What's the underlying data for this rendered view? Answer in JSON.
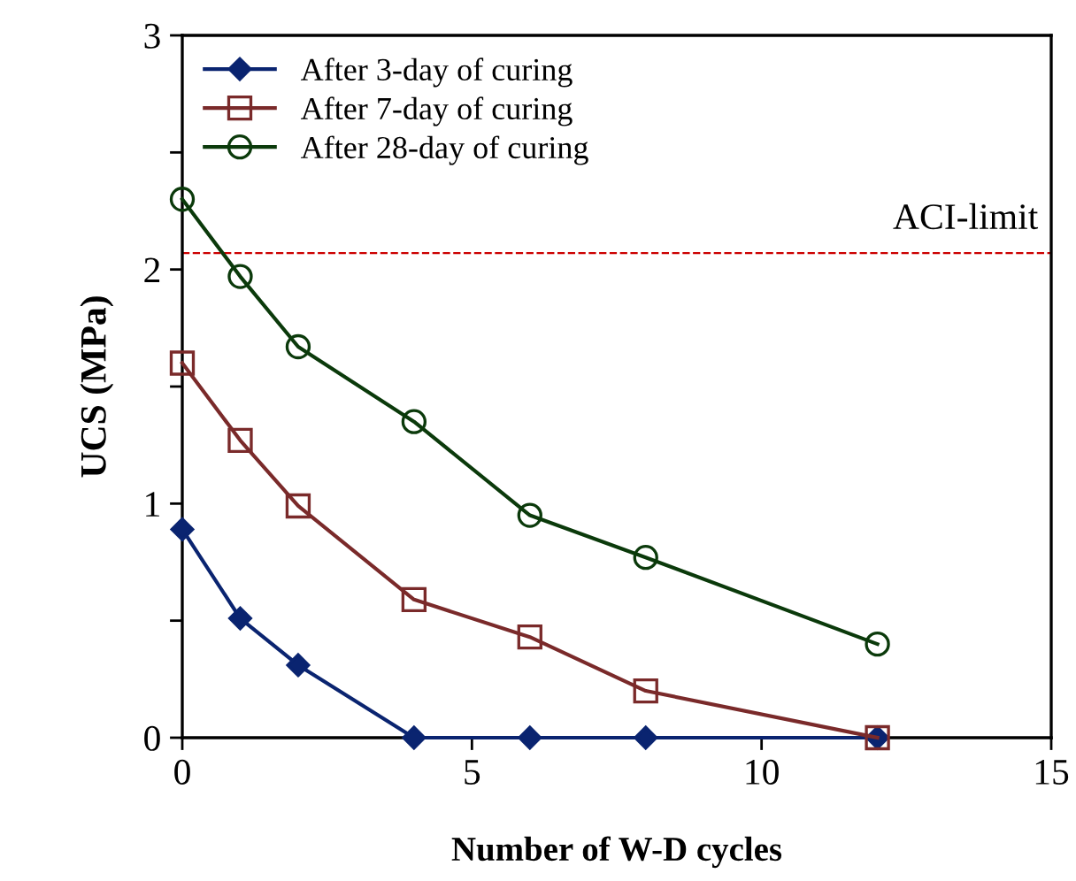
{
  "chart_data": {
    "type": "line",
    "xlabel": "Number of W-D cycles",
    "ylabel": "UCS (MPa)",
    "x": [
      0,
      1,
      2,
      4,
      6,
      8,
      12
    ],
    "series": [
      {
        "name": "After 3-day of curing",
        "color": "#0a2470",
        "marker": "diamond",
        "values": [
          0.89,
          0.51,
          0.31,
          0,
          0,
          0,
          0
        ]
      },
      {
        "name": "After 7-day of curing",
        "color": "#7a2a2a",
        "marker": "square",
        "values": [
          1.6,
          1.27,
          0.99,
          0.59,
          0.43,
          0.2,
          0
        ]
      },
      {
        "name": "After 28-day of curing",
        "color": "#0b3a0b",
        "marker": "circle",
        "values": [
          2.3,
          1.97,
          1.67,
          1.35,
          0.95,
          0.77,
          0.4
        ]
      }
    ],
    "xlim": [
      0,
      15
    ],
    "xticks": [
      0,
      5,
      10,
      15
    ],
    "ylim": [
      0,
      3
    ],
    "yticks": [
      0,
      {
        "value": 0.5,
        "label": null
      },
      1,
      {
        "value": 1.5,
        "label": null
      },
      2,
      {
        "value": 2.5,
        "label": null
      },
      3
    ],
    "ref_lines": [
      {
        "axis": "y",
        "value": 2.07,
        "label": "ACI-limit",
        "color": "#cc0000",
        "line_style": "dashed"
      }
    ],
    "legend": "top left",
    "grid": false,
    "line_style": "solid"
  }
}
